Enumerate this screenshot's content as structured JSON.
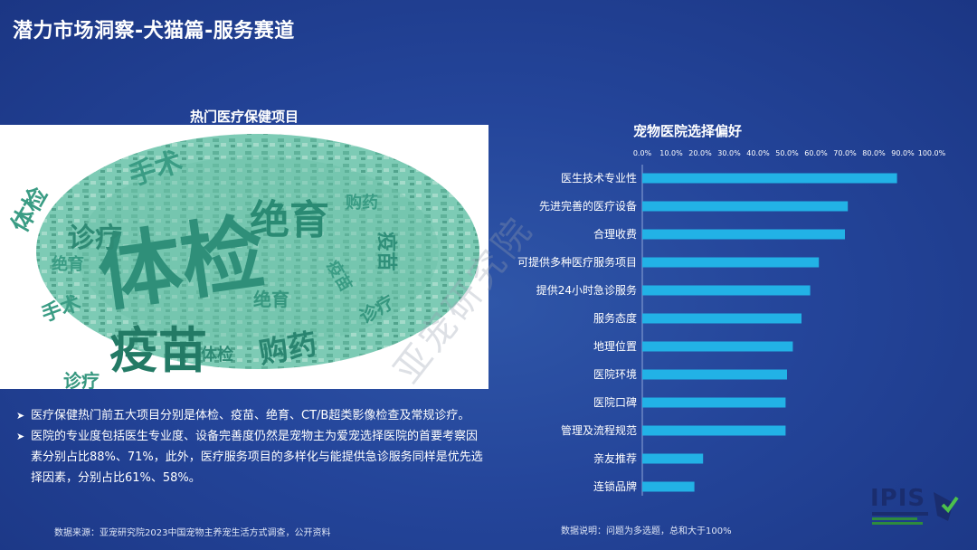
{
  "page": {
    "title": "潜力市场洞察-犬猫篇-服务赛道"
  },
  "wordcloud": {
    "title": "热门医疗保健项目",
    "words": [
      "体检",
      "疫苗",
      "绝育",
      "手术",
      "诊疗",
      "购药",
      "体检",
      "疫苗",
      "绝育",
      "手术",
      "诊疗",
      "诊疗",
      "疫苗",
      "体检",
      "购药",
      "绝育"
    ]
  },
  "bullets": [
    "医疗保健热门前五大项目分别是体检、疫苗、绝育、CT/B超类影像检查及常规诊疗。",
    "医院的专业度包括医生专业度、设备完善度仍然是宠物主为爱宠选择医院的首要考察因素分别占比88%、71%，此外，医疗服务项目的多样化与能提供急诊服务同样是优先选择因素，分别占比61%、58%。"
  ],
  "source": "数据来源：亚宠研究院2023中国宠物主养宠生活方式调查，公开资料",
  "watermark": "亚宠研究院",
  "logo": {
    "text": "IPIS"
  },
  "chart_data": {
    "type": "bar",
    "orientation": "horizontal",
    "title": "宠物医院选择偏好",
    "categories": [
      "医生技术专业性",
      "先进完善的医疗设备",
      "合理收费",
      "可提供多种医疗服务项目",
      "提供24小时急诊服务",
      "服务态度",
      "地理位置",
      "医院环境",
      "医院口碑",
      "管理及流程规范",
      "亲友推荐",
      "连锁品牌"
    ],
    "values": [
      88,
      71,
      70,
      61,
      58,
      55,
      52,
      50,
      49.5,
      49.5,
      21,
      18
    ],
    "ticks": [
      "0.0%",
      "10.0%",
      "20.0%",
      "30.0%",
      "40.0%",
      "50.0%",
      "60.0%",
      "70.0%",
      "80.0%",
      "90.0%",
      "100.0%"
    ],
    "xlim": [
      0,
      100
    ],
    "axis_position": "top",
    "bar_color": "#22b2e6",
    "grid": false,
    "note": "数据说明：问题为多选题，总和大于100%"
  }
}
